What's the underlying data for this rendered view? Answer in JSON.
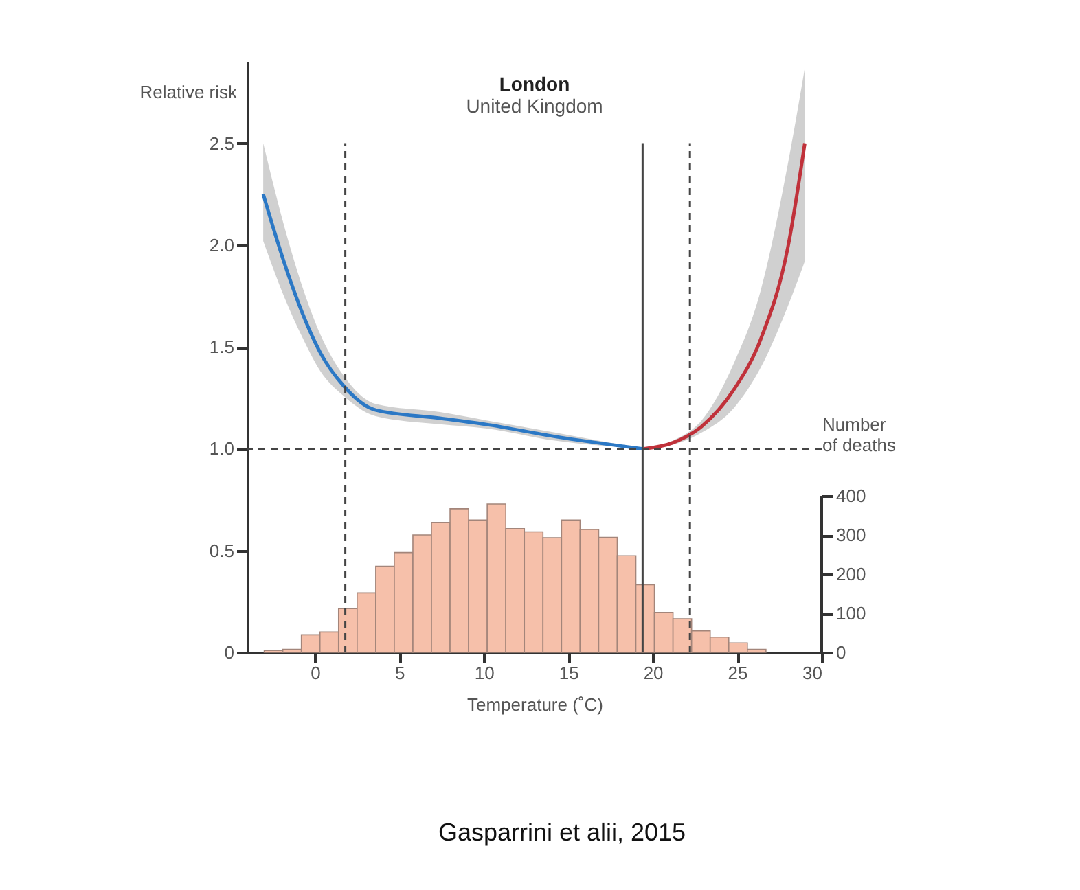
{
  "chart_data": {
    "type": "line",
    "title": "London",
    "subtitle": "United Kingdom",
    "xlabel": "Temperature (˚C)",
    "ylabel": "Relative risk",
    "y2label": "Number of deaths",
    "xlim": [
      -4,
      30
    ],
    "xticks": [
      0,
      5,
      10,
      15,
      20,
      25,
      30
    ],
    "ylim": [
      0,
      2.9
    ],
    "yticks": [
      0,
      0.5,
      {
        "value": 1,
        "label": "1.0"
      },
      1.5,
      {
        "value": 2,
        "label": "2.0"
      },
      2.5
    ],
    "y2lim": [
      0,
      1509
    ],
    "y2ticks": [
      0,
      100,
      200,
      300,
      400
    ],
    "grid": false,
    "marker": "none",
    "line_style": "solid",
    "series": [
      {
        "type": "line",
        "color": "#2b78c5",
        "x": [
          -3.06,
          -1.84,
          -0.76,
          0.33,
          1.69,
          3.6,
          7.4,
          10.1,
          14.2,
          19.35
        ],
        "values": [
          2.25,
          1.92,
          1.67,
          1.47,
          1.31,
          1.19,
          1.15,
          1.12,
          1.06,
          1.0
        ],
        "lower": [
          2.02,
          1.75,
          1.55,
          1.38,
          1.26,
          1.16,
          1.12,
          1.1,
          1.04,
          1.0
        ],
        "upper": [
          2.5,
          2.1,
          1.8,
          1.56,
          1.36,
          1.22,
          1.18,
          1.14,
          1.08,
          1.0
        ]
      },
      {
        "type": "line",
        "color": "#c0313a",
        "x": [
          19.5,
          21.2,
          22.9,
          24.8,
          26.4,
          28.0,
          29.0
        ],
        "values": [
          1.0,
          1.03,
          1.11,
          1.29,
          1.54,
          1.99,
          2.5
        ],
        "lower": [
          1.0,
          1.02,
          1.08,
          1.2,
          1.4,
          1.7,
          1.92
        ],
        "upper": [
          1.0,
          1.04,
          1.14,
          1.42,
          1.78,
          2.4,
          2.87
        ]
      },
      {
        "type": "histogram",
        "axis": "y2",
        "color": "#f6c0aa",
        "bins": [
          -3.0,
          -1.9,
          -0.8,
          0.3,
          1.4,
          2.5,
          3.6,
          4.7,
          5.8,
          6.9,
          8.0,
          9.1,
          10.2,
          11.3,
          12.4,
          13.5,
          14.6,
          15.7,
          16.8,
          17.9,
          19.0,
          20.1,
          21.2,
          22.3,
          23.4,
          24.5,
          25.6,
          26.7
        ],
        "values": [
          5,
          8,
          45,
          52,
          112,
          152,
          220,
          255,
          300,
          332,
          367,
          338,
          379,
          316,
          308,
          293,
          338,
          314,
          294,
          247,
          173,
          102,
          86,
          55,
          39,
          24,
          8
        ]
      }
    ],
    "ref_lines": [
      {
        "axis": "y",
        "value": 1.0,
        "color": "#444444",
        "line_style": "dashed"
      },
      {
        "axis": "x",
        "value": 1.8,
        "color": "#444444",
        "line_style": "dashed"
      },
      {
        "axis": "x",
        "value": 19.4,
        "color": "#444444",
        "line_style": "solid"
      },
      {
        "axis": "x",
        "value": 22.2,
        "color": "#444444",
        "line_style": "dashed"
      }
    ],
    "annotations": [
      "Gasparrini et alii, 2015"
    ]
  }
}
